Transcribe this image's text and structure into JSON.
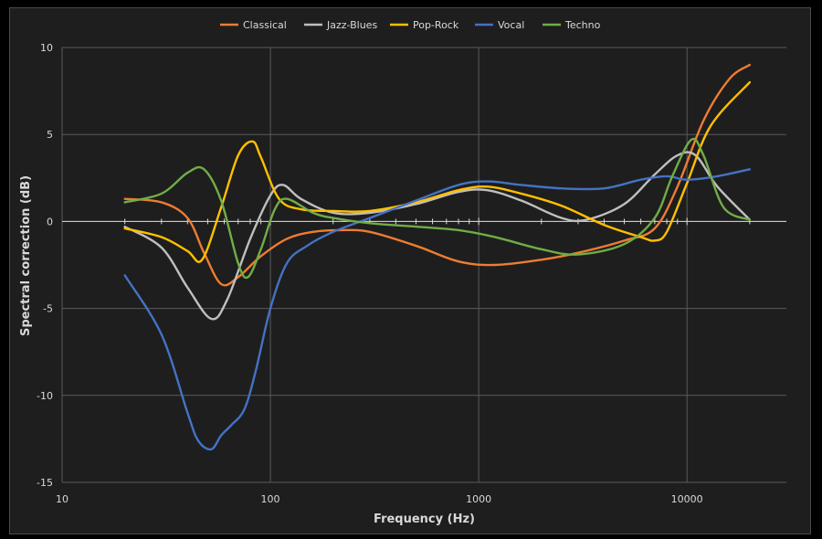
{
  "chart_data": {
    "type": "line",
    "title": "",
    "xlabel": "Frequency (Hz)",
    "ylabel": "Spectral correction (dB)",
    "xscale": "log",
    "xlim": [
      10,
      30000
    ],
    "ylim": [
      -15,
      10
    ],
    "x_ticks": [
      10,
      100,
      1000,
      10000
    ],
    "x_tick_labels": [
      "10",
      "100",
      "1000",
      "10000"
    ],
    "y_ticks": [
      -15,
      -10,
      -5,
      0,
      5,
      10
    ],
    "y_tick_labels": [
      "-15",
      "-10",
      "-5",
      "0",
      "5",
      "10"
    ],
    "grid": true,
    "legend_position": "top",
    "series": [
      {
        "name": "Classical",
        "color": "#ed7d31",
        "x": [
          20,
          30,
          40,
          48,
          58,
          70,
          90,
          120,
          160,
          220,
          300,
          500,
          800,
          1200,
          2000,
          3000,
          5000,
          7000,
          9000,
          12000,
          16000,
          20000
        ],
        "y": [
          1.3,
          1.1,
          0.2,
          -1.8,
          -3.6,
          -3.2,
          -2.0,
          -1.0,
          -0.6,
          -0.5,
          -0.6,
          -1.4,
          -2.3,
          -2.5,
          -2.2,
          -1.8,
          -1.1,
          -0.4,
          2.0,
          5.8,
          8.2,
          9.0
        ]
      },
      {
        "name": "Jazz-Blues",
        "color": "#bfbfbf",
        "x": [
          20,
          30,
          40,
          52,
          62,
          80,
          100,
          115,
          140,
          200,
          300,
          500,
          800,
          1100,
          1600,
          2500,
          3300,
          5000,
          7000,
          9000,
          11000,
          14000,
          20000
        ],
        "y": [
          -0.3,
          -1.5,
          -3.8,
          -5.6,
          -4.5,
          -1.0,
          1.5,
          2.1,
          1.3,
          0.5,
          0.5,
          1.0,
          1.7,
          1.8,
          1.2,
          0.2,
          0.1,
          1.0,
          2.7,
          3.8,
          3.8,
          2.0,
          0.1
        ]
      },
      {
        "name": "Pop-Rock",
        "color": "#ffc000",
        "x": [
          20,
          30,
          40,
          47,
          58,
          70,
          82,
          90,
          110,
          140,
          200,
          300,
          500,
          800,
          1100,
          1600,
          2500,
          4000,
          6000,
          7000,
          8000,
          10000,
          13000,
          20000
        ],
        "y": [
          -0.4,
          -0.9,
          -1.7,
          -2.2,
          0.8,
          3.8,
          4.6,
          3.7,
          1.3,
          0.7,
          0.6,
          0.6,
          1.1,
          1.8,
          2.0,
          1.6,
          0.9,
          -0.2,
          -0.9,
          -1.1,
          -0.6,
          2.2,
          5.5,
          8.0
        ]
      },
      {
        "name": "Vocal",
        "color": "#4472c4",
        "x": [
          20,
          30,
          40,
          45,
          52,
          58,
          65,
          75,
          85,
          100,
          120,
          150,
          200,
          300,
          500,
          800,
          1100,
          1600,
          2500,
          4000,
          6000,
          8000,
          10000,
          14000,
          20000
        ],
        "y": [
          -3.1,
          -6.5,
          -11.0,
          -12.6,
          -13.1,
          -12.3,
          -11.7,
          -10.8,
          -8.6,
          -5.0,
          -2.4,
          -1.4,
          -0.6,
          0.2,
          1.2,
          2.1,
          2.3,
          2.1,
          1.9,
          1.9,
          2.4,
          2.6,
          2.4,
          2.6,
          3.0
        ]
      },
      {
        "name": "Techno",
        "color": "#70ad47",
        "x": [
          20,
          30,
          40,
          48,
          58,
          70,
          78,
          90,
          105,
          120,
          160,
          200,
          300,
          500,
          800,
          1200,
          2000,
          3000,
          5000,
          7000,
          8500,
          10500,
          12000,
          15000,
          20000
        ],
        "y": [
          1.1,
          1.6,
          2.8,
          3.0,
          1.2,
          -2.4,
          -3.2,
          -1.6,
          0.7,
          1.3,
          0.5,
          0.2,
          -0.1,
          -0.3,
          -0.5,
          -0.9,
          -1.6,
          -1.9,
          -1.3,
          0.2,
          2.6,
          4.7,
          3.8,
          0.8,
          0.1
        ]
      }
    ]
  }
}
